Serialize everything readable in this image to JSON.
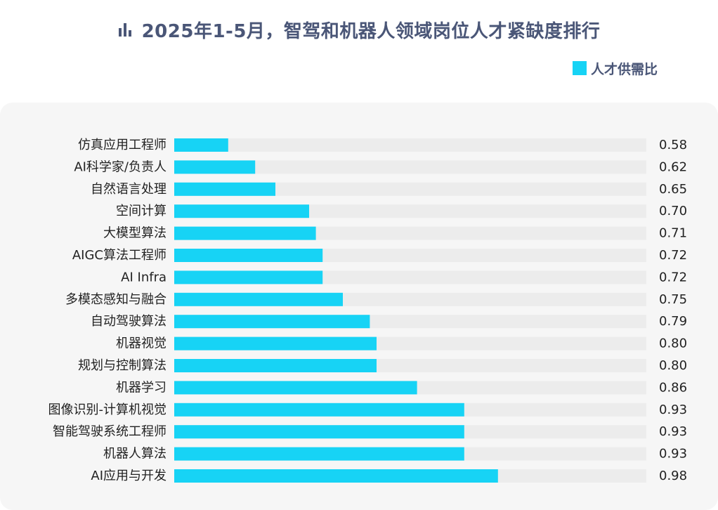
{
  "title": "2025年1-5月，智驾和机器人领域岗位人才紧缺度排行",
  "title_icon": "bar-chart-icon",
  "colors": {
    "bar": "#17d3f5",
    "track": "#ececec",
    "panel": "#f6f6f6",
    "title": "#4a5677"
  },
  "chart_data": {
    "type": "bar",
    "orientation": "horizontal",
    "legend_position": "top-right",
    "title": "2025年1-5月，智驾和机器人领域岗位人才紧缺度排行",
    "xlabel": "",
    "ylabel": "",
    "categories": [
      "仿真应用工程师",
      "AI科学家/负责人",
      "自然语言处理",
      "空间计算",
      "大模型算法",
      "AIGC算法工程师",
      "AI Infra",
      "多模态感知与融合",
      "自动驾驶算法",
      "机器视觉",
      "规划与控制算法",
      "机器学习",
      "图像识别-计算机视觉",
      "智能驾驶系统工程师",
      "机器人算法",
      "AI应用与开发"
    ],
    "series": [
      {
        "name": "人才供需比",
        "values": [
          0.58,
          0.62,
          0.65,
          0.7,
          0.71,
          0.72,
          0.72,
          0.75,
          0.79,
          0.8,
          0.8,
          0.86,
          0.93,
          0.93,
          0.93,
          0.98
        ],
        "value_labels": [
          "0.58",
          "0.62",
          "0.65",
          "0.70",
          "0.71",
          "0.72",
          "0.72",
          "0.75",
          "0.79",
          "0.80",
          "0.80",
          "0.86",
          "0.93",
          "0.93",
          "0.93",
          "0.98"
        ]
      }
    ]
  }
}
